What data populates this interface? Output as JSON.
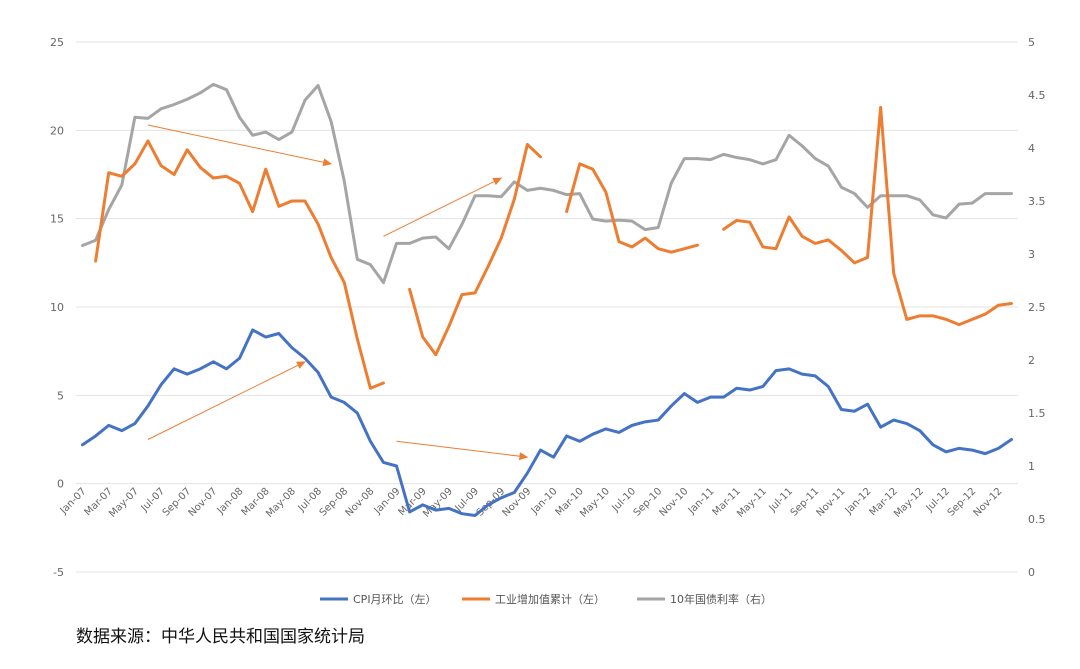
{
  "source_note": "数据来源：中华人民共和国国家统计局",
  "colors": {
    "cpi": "#4472C4",
    "industry": "#ED7D31",
    "bond": "#A5A5A5",
    "grid": "#e3e3e3",
    "arrow": "#ED7D31"
  },
  "chart_data": {
    "type": "line",
    "title": "",
    "left_axis": {
      "ylim": [
        -5,
        25
      ],
      "ticks": [
        "-5",
        "0",
        "5",
        "10",
        "15",
        "20",
        "25"
      ]
    },
    "right_axis": {
      "ylim": [
        0,
        5
      ],
      "ticks": [
        "0",
        "0.5",
        "1",
        "1.5",
        "2",
        "2.5",
        "3",
        "3.5",
        "4",
        "4.5",
        "5"
      ]
    },
    "grid": true,
    "legend": "bottom",
    "x": [
      "Jan-07",
      "Feb-07",
      "Mar-07",
      "Apr-07",
      "May-07",
      "Jun-07",
      "Jul-07",
      "Aug-07",
      "Sep-07",
      "Oct-07",
      "Nov-07",
      "Dec-07",
      "Jan-08",
      "Feb-08",
      "Mar-08",
      "Apr-08",
      "May-08",
      "Jun-08",
      "Jul-08",
      "Aug-08",
      "Sep-08",
      "Oct-08",
      "Nov-08",
      "Dec-08",
      "Jan-09",
      "Feb-09",
      "Mar-09",
      "Apr-09",
      "May-09",
      "Jun-09",
      "Jul-09",
      "Aug-09",
      "Sep-09",
      "Oct-09",
      "Nov-09",
      "Dec-09",
      "Jan-10",
      "Feb-10",
      "Mar-10",
      "Apr-10",
      "May-10",
      "Jun-10",
      "Jul-10",
      "Aug-10",
      "Sep-10",
      "Oct-10",
      "Nov-10",
      "Dec-10",
      "Jan-11",
      "Feb-11",
      "Mar-11",
      "Apr-11",
      "May-11",
      "Jun-11",
      "Jul-11",
      "Aug-11",
      "Sep-11",
      "Oct-11",
      "Nov-11",
      "Dec-11",
      "Jan-12",
      "Feb-12",
      "Mar-12",
      "Apr-12",
      "May-12",
      "Jun-12",
      "Jul-12",
      "Aug-12",
      "Sep-12",
      "Oct-12",
      "Nov-12",
      "Dec-12"
    ],
    "xtick_labels": [
      "Jan-07",
      "Mar-07",
      "May-07",
      "Jul-07",
      "Sep-07",
      "Nov-07",
      "Jan-08",
      "Mar-08",
      "May-08",
      "Jul-08",
      "Sep-08",
      "Nov-08",
      "Jan-09",
      "Mar-09",
      "May-09",
      "Jul-09",
      "Sep-09",
      "Nov-09",
      "Jan-10",
      "Mar-10",
      "May-10",
      "Jul-10",
      "Sep-10",
      "Nov-10",
      "Jan-11",
      "Mar-11",
      "May-11",
      "Jul-11",
      "Sep-11",
      "Nov-11",
      "Jan-12",
      "Mar-12",
      "May-12",
      "Jul-12",
      "Sep-12",
      "Nov-12"
    ],
    "series": [
      {
        "key": "cpi",
        "name": "CPI月环比（左）",
        "axis": "left",
        "values": [
          2.2,
          2.7,
          3.3,
          3.0,
          3.4,
          4.4,
          5.6,
          6.5,
          6.2,
          6.5,
          6.9,
          6.5,
          7.1,
          8.7,
          8.3,
          8.5,
          7.7,
          7.1,
          6.3,
          4.9,
          4.6,
          4.0,
          2.4,
          1.2,
          1.0,
          -1.6,
          -1.2,
          -1.5,
          -1.4,
          -1.7,
          -1.8,
          -1.2,
          -0.8,
          -0.5,
          0.6,
          1.9,
          1.5,
          2.7,
          2.4,
          2.8,
          3.1,
          2.9,
          3.3,
          3.5,
          3.6,
          4.4,
          5.1,
          4.6,
          4.9,
          4.9,
          5.4,
          5.3,
          5.5,
          6.4,
          6.5,
          6.2,
          6.1,
          5.5,
          4.2,
          4.1,
          4.5,
          3.2,
          3.6,
          3.4,
          3.0,
          2.2,
          1.8,
          2.0,
          1.9,
          1.7,
          2.0,
          2.5
        ]
      },
      {
        "key": "industry",
        "name": "工业增加值累计（左）",
        "axis": "left",
        "values": [
          null,
          12.6,
          17.6,
          17.4,
          18.1,
          19.4,
          18.0,
          17.5,
          18.9,
          17.9,
          17.3,
          17.4,
          17.0,
          15.4,
          17.8,
          15.7,
          16.0,
          16.0,
          14.7,
          12.8,
          11.4,
          8.2,
          5.4,
          5.7,
          null,
          11.0,
          8.3,
          7.3,
          8.9,
          10.7,
          10.8,
          12.3,
          13.9,
          16.1,
          19.2,
          18.5,
          null,
          15.4,
          18.1,
          17.8,
          16.5,
          13.7,
          13.4,
          13.9,
          13.3,
          13.1,
          13.3,
          13.5,
          null,
          14.4,
          14.9,
          14.8,
          13.4,
          13.3,
          15.1,
          14.0,
          13.6,
          13.8,
          13.2,
          12.5,
          12.8,
          21.3,
          11.9,
          9.3,
          9.5,
          9.5,
          9.3,
          9.0,
          9.3,
          9.6,
          10.1,
          10.2
        ]
      },
      {
        "key": "bond",
        "name": "10年国债利率（右）",
        "axis": "right",
        "values": [
          3.08,
          3.13,
          3.42,
          3.65,
          4.29,
          4.28,
          4.37,
          4.41,
          4.46,
          4.52,
          4.6,
          4.55,
          4.29,
          4.12,
          4.15,
          4.08,
          4.15,
          4.45,
          4.59,
          4.25,
          3.69,
          2.95,
          2.9,
          2.73,
          3.1,
          3.1,
          3.15,
          3.16,
          3.05,
          3.28,
          3.55,
          3.55,
          3.54,
          3.68,
          3.6,
          3.62,
          3.6,
          3.56,
          3.57,
          3.33,
          3.31,
          3.32,
          3.31,
          3.23,
          3.25,
          3.67,
          3.9,
          3.9,
          3.89,
          3.94,
          3.91,
          3.89,
          3.85,
          3.89,
          4.12,
          4.02,
          3.9,
          3.83,
          3.63,
          3.57,
          3.44,
          3.55,
          3.55,
          3.55,
          3.51,
          3.37,
          3.34,
          3.47,
          3.48,
          3.57,
          3.57,
          3.57
        ]
      }
    ],
    "annotations": [
      {
        "type": "arrow",
        "from": [
          "Jun-07",
          20.3
        ],
        "to": [
          "Aug-08",
          18.1
        ]
      },
      {
        "type": "arrow",
        "from": [
          "Jun-07",
          2.5
        ],
        "to": [
          "Jun-08",
          6.9
        ]
      },
      {
        "type": "arrow",
        "from": [
          "Dec-08",
          14.0
        ],
        "to": [
          "Sep-09",
          17.3
        ]
      },
      {
        "type": "arrow",
        "from": [
          "Jan-09",
          2.4
        ],
        "to": [
          "Nov-09",
          1.5
        ]
      }
    ]
  }
}
